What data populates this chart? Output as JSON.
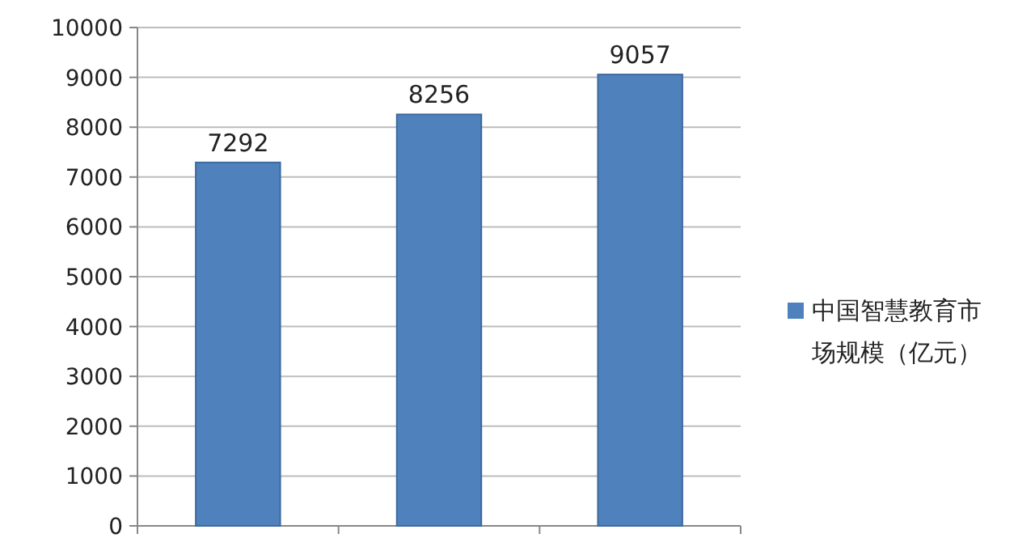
{
  "chart_data": {
    "type": "bar",
    "categories": [
      null,
      null,
      null
    ],
    "series": [
      {
        "name": "中国智慧教育市场规模（亿元）",
        "color": "#4f81bd",
        "values": [
          7292,
          8256,
          9057
        ]
      }
    ],
    "ylim": [
      0,
      10000
    ],
    "yticks": [
      0,
      1000,
      2000,
      3000,
      4000,
      5000,
      6000,
      7000,
      8000,
      9000,
      10000
    ],
    "grid": "y",
    "legend": "right",
    "data_labels": true
  }
}
